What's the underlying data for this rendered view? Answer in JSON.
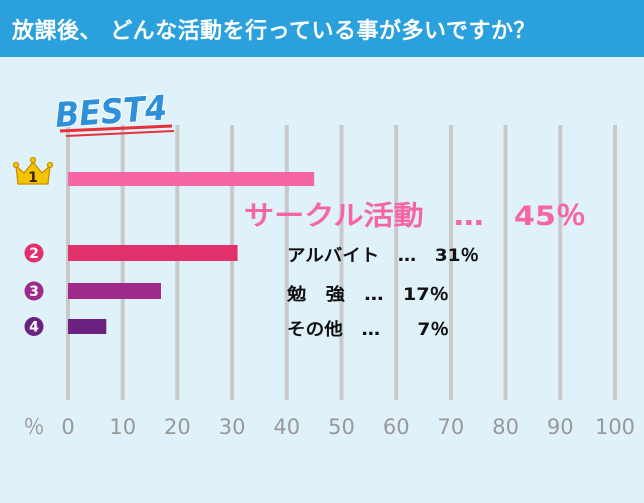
{
  "header": {
    "title": "放課後、 どんな活動を行っている事が多いですか？"
  },
  "badge": {
    "label": "BEST4"
  },
  "colors": {
    "header_bg": "#2aa1dc",
    "panel_bg": "#dff1f9",
    "grid": "#c9c9c9",
    "axis_text": "#999999",
    "rank1": "#f766a4",
    "rank2": "#e2306a",
    "rank3": "#9e2a8c",
    "rank4": "#6b2180",
    "crown": "#f5c400",
    "badge_text": "#2f8fd8",
    "badge_underline": "#e8303a"
  },
  "chart_data": {
    "type": "bar",
    "orientation": "horizontal",
    "categories": [
      "サークル活動",
      "アルバイト",
      "勉　強",
      "その他"
    ],
    "values": [
      45,
      31,
      17,
      7
    ],
    "ranks": [
      "1",
      "2",
      "3",
      "4"
    ],
    "rank_icons": [
      "crown-icon",
      "circle-badge",
      "circle-badge",
      "circle-badge"
    ],
    "labels": [
      "サークル活動　…　45％",
      "アルバイト　…　31％",
      "勉　強　…　17％",
      "その他　…　　7％"
    ],
    "xlabel": "％",
    "xlim": [
      0,
      100
    ],
    "xticks": [
      "0",
      "10",
      "20",
      "30",
      "40",
      "50",
      "60",
      "70",
      "80",
      "90",
      "100"
    ],
    "grid": "vertical"
  }
}
